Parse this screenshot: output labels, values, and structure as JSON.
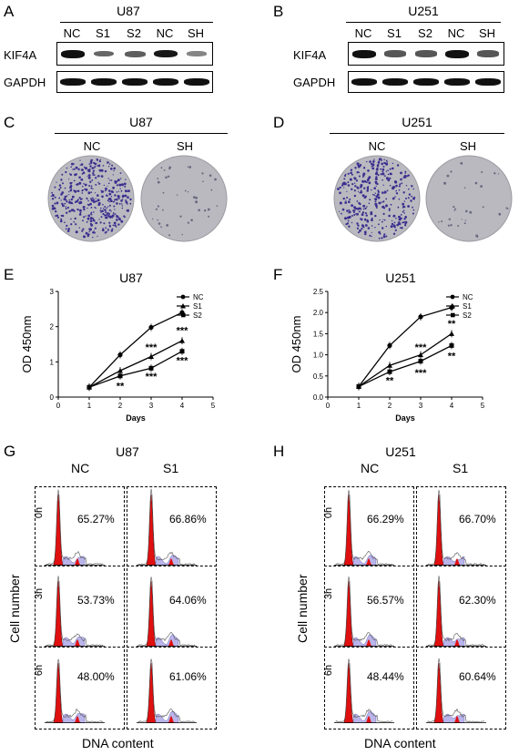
{
  "panels": {
    "A": {
      "letter": "A",
      "title": "U87",
      "lanes": [
        "NC",
        "S1",
        "S2",
        "NC",
        "SH"
      ],
      "rows": [
        "KIF4A",
        "GAPDH"
      ],
      "kif4a_intensity": [
        1.0,
        0.45,
        0.5,
        0.95,
        0.25
      ]
    },
    "B": {
      "letter": "B",
      "title": "U251",
      "lanes": [
        "NC",
        "S1",
        "S2",
        "NC",
        "SH"
      ],
      "rows": [
        "KIF4A",
        "GAPDH"
      ],
      "kif4a_intensity": [
        1.0,
        0.55,
        0.55,
        1.0,
        0.55
      ]
    },
    "C": {
      "letter": "C",
      "title": "U87",
      "dishes": [
        "NC",
        "SH"
      ]
    },
    "D": {
      "letter": "D",
      "title": "U251",
      "dishes": [
        "NC",
        "SH"
      ]
    },
    "E": {
      "letter": "E"
    },
    "F": {
      "letter": "F"
    },
    "G": {
      "letter": "G",
      "title": "U87",
      "cols": [
        "NC",
        "S1"
      ],
      "rows": [
        "0h",
        "3h",
        "6h"
      ],
      "values": [
        [
          "65.27%",
          "66.86%"
        ],
        [
          "53.73%",
          "64.06%"
        ],
        [
          "48.00%",
          "61.06%"
        ]
      ],
      "ylabel": "Cell number",
      "xlabel": "DNA content"
    },
    "H": {
      "letter": "H",
      "title": "U251",
      "cols": [
        "NC",
        "S1"
      ],
      "rows": [
        "0h",
        "3h",
        "6h"
      ],
      "values": [
        [
          "66.29%",
          "66.70%"
        ],
        [
          "56.57%",
          "62.30%"
        ],
        [
          "48.44%",
          "60.64%"
        ]
      ],
      "ylabel": "Cell number",
      "xlabel": "DNA content"
    }
  },
  "chart_data": [
    {
      "type": "line",
      "title": "U87",
      "xlabel": "Days",
      "ylabel": "OD 450nm",
      "xlim": [
        0,
        5
      ],
      "ylim": [
        0,
        3
      ],
      "xticks": [
        "0",
        "1",
        "2",
        "3",
        "4",
        "5"
      ],
      "yticks": [
        "0",
        "1",
        "2",
        "3"
      ],
      "x": [
        1,
        2,
        3,
        4
      ],
      "legend_position": "top-right",
      "series": [
        {
          "name": "NC",
          "marker": "circle",
          "values": [
            0.28,
            1.2,
            1.98,
            2.4
          ]
        },
        {
          "name": "S1",
          "marker": "triangle",
          "values": [
            0.28,
            0.75,
            1.15,
            1.6
          ]
        },
        {
          "name": "S2",
          "marker": "square",
          "values": [
            0.28,
            0.6,
            0.82,
            1.3
          ]
        }
      ],
      "annotations": [
        {
          "x": 2,
          "y": 0.32,
          "text": "**"
        },
        {
          "x": 3,
          "y": 1.42,
          "text": "***"
        },
        {
          "x": 3,
          "y": 0.6,
          "text": "***"
        },
        {
          "x": 4,
          "y": 1.9,
          "text": "***"
        },
        {
          "x": 4,
          "y": 1.05,
          "text": "***"
        }
      ]
    },
    {
      "type": "line",
      "title": "U251",
      "xlabel": "Days",
      "ylabel": "OD 450nm",
      "xlim": [
        0,
        5
      ],
      "ylim": [
        0,
        2.5
      ],
      "xticks": [
        "0",
        "1",
        "2",
        "3",
        "4",
        "5"
      ],
      "yticks": [
        "0.0",
        "0.5",
        "1.0",
        "1.5",
        "2.0",
        "2.5"
      ],
      "x": [
        1,
        2,
        3,
        4
      ],
      "legend_position": "top-right",
      "series": [
        {
          "name": "NC",
          "marker": "circle",
          "values": [
            0.25,
            1.22,
            1.9,
            2.12
          ]
        },
        {
          "name": "S1",
          "marker": "triangle",
          "values": [
            0.25,
            0.75,
            1.0,
            1.5
          ]
        },
        {
          "name": "S2",
          "marker": "square",
          "values": [
            0.25,
            0.6,
            0.85,
            1.22
          ]
        }
      ],
      "annotations": [
        {
          "x": 2,
          "y": 0.4,
          "text": "**"
        },
        {
          "x": 3,
          "y": 1.18,
          "text": "***"
        },
        {
          "x": 3,
          "y": 0.58,
          "text": "***"
        },
        {
          "x": 4,
          "y": 1.75,
          "text": "**"
        },
        {
          "x": 4,
          "y": 0.98,
          "text": "**"
        }
      ]
    }
  ]
}
